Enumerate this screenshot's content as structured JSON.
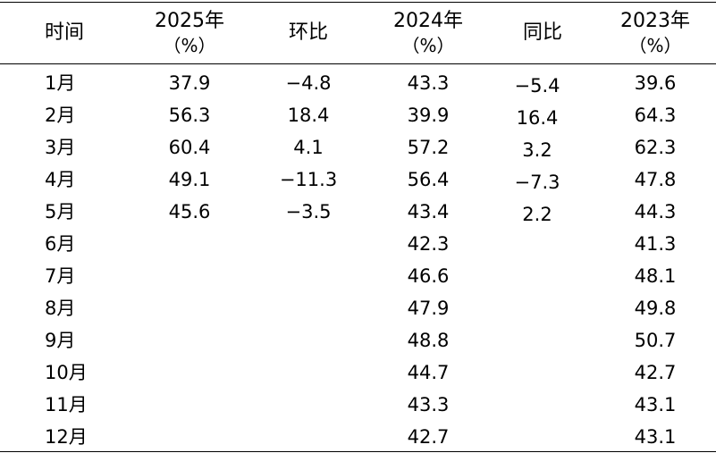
{
  "headers": [
    {
      "title": "时间",
      "unit": ""
    },
    {
      "title": "2025年",
      "unit": "（%）"
    },
    {
      "title": "环比",
      "unit": ""
    },
    {
      "title": "2024年",
      "unit": "（%）"
    },
    {
      "title": "同比",
      "unit": ""
    },
    {
      "title": "2023年",
      "unit": "（%）"
    }
  ],
  "rows": [
    {
      "month": "1月",
      "y2025": "37.9",
      "mom": "−4.8",
      "y2024": "43.3",
      "yoy": "−5.4",
      "y2023": "39.6"
    },
    {
      "month": "2月",
      "y2025": "56.3",
      "mom": "18.4",
      "y2024": "39.9",
      "yoy": "16.4",
      "y2023": "64.3"
    },
    {
      "month": "3月",
      "y2025": "60.4",
      "mom": "4.1",
      "y2024": "57.2",
      "yoy": "3.2",
      "y2023": "62.3"
    },
    {
      "month": "4月",
      "y2025": "49.1",
      "mom": "−11.3",
      "y2024": "56.4",
      "yoy": "−7.3",
      "y2023": "47.8"
    },
    {
      "month": "5月",
      "y2025": "45.6",
      "mom": "−3.5",
      "y2024": "43.4",
      "yoy": "2.2",
      "y2023": "44.3"
    },
    {
      "month": "6月",
      "y2025": "",
      "mom": "",
      "y2024": "42.3",
      "yoy": "",
      "y2023": "41.3"
    },
    {
      "month": "7月",
      "y2025": "",
      "mom": "",
      "y2024": "46.6",
      "yoy": "",
      "y2023": "48.1"
    },
    {
      "month": "8月",
      "y2025": "",
      "mom": "",
      "y2024": "47.9",
      "yoy": "",
      "y2023": "49.8"
    },
    {
      "month": "9月",
      "y2025": "",
      "mom": "",
      "y2024": "48.8",
      "yoy": "",
      "y2023": "50.7"
    },
    {
      "month": "10月",
      "y2025": "",
      "mom": "",
      "y2024": "44.7",
      "yoy": "",
      "y2023": "42.7"
    },
    {
      "month": "11月",
      "y2025": "",
      "mom": "",
      "y2024": "43.3",
      "yoy": "",
      "y2023": "43.1"
    },
    {
      "month": "12月",
      "y2025": "",
      "mom": "",
      "y2024": "42.7",
      "yoy": "",
      "y2023": "43.1"
    }
  ]
}
